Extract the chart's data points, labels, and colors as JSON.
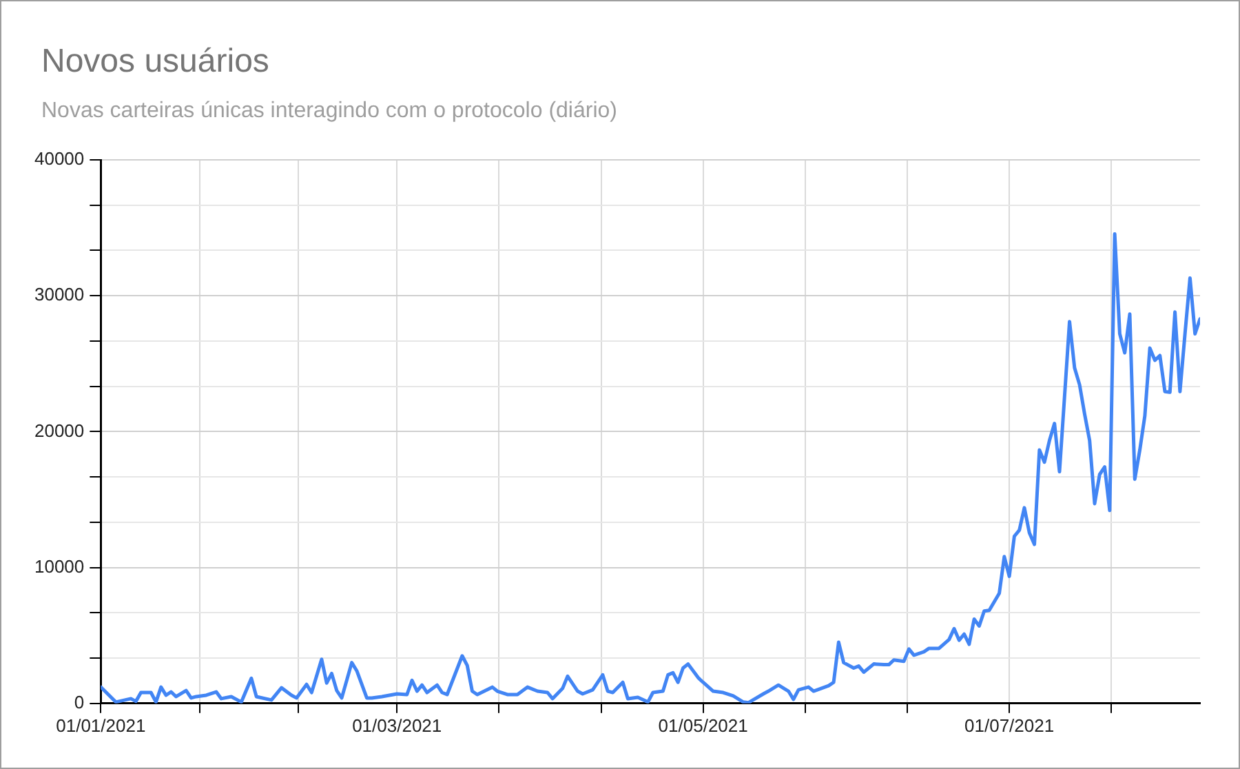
{
  "chart_data": {
    "type": "line",
    "title": "Novos usuários",
    "subtitle": "Novas carteiras únicas interagindo com o protocolo (diário)",
    "x": [
      "2021-01-01",
      "2021-01-04",
      "2021-01-07",
      "2021-01-08",
      "2021-01-09",
      "2021-01-11",
      "2021-01-12",
      "2021-01-13",
      "2021-01-14",
      "2021-01-15",
      "2021-01-16",
      "2021-01-18",
      "2021-01-19",
      "2021-01-20",
      "2021-01-22",
      "2021-01-24",
      "2021-01-25",
      "2021-01-27",
      "2021-01-29",
      "2021-01-31",
      "2021-02-01",
      "2021-02-04",
      "2021-02-06",
      "2021-02-08",
      "2021-02-09",
      "2021-02-11",
      "2021-02-12",
      "2021-02-14",
      "2021-02-15",
      "2021-02-16",
      "2021-02-17",
      "2021-02-18",
      "2021-02-20",
      "2021-02-21",
      "2021-02-23",
      "2021-02-24",
      "2021-02-26",
      "2021-03-01",
      "2021-03-03",
      "2021-03-04",
      "2021-03-05",
      "2021-03-06",
      "2021-03-07",
      "2021-03-09",
      "2021-03-10",
      "2021-03-11",
      "2021-03-14",
      "2021-03-15",
      "2021-03-16",
      "2021-03-17",
      "2021-03-20",
      "2021-03-21",
      "2021-03-23",
      "2021-03-25",
      "2021-03-27",
      "2021-03-29",
      "2021-03-31",
      "2021-04-01",
      "2021-04-03",
      "2021-04-04",
      "2021-04-06",
      "2021-04-07",
      "2021-04-09",
      "2021-04-11",
      "2021-04-12",
      "2021-04-13",
      "2021-04-15",
      "2021-04-16",
      "2021-04-18",
      "2021-04-20",
      "2021-04-21",
      "2021-04-23",
      "2021-04-24",
      "2021-04-25",
      "2021-04-26",
      "2021-04-27",
      "2021-04-28",
      "2021-04-30",
      "2021-05-01",
      "2021-05-03",
      "2021-05-05",
      "2021-05-07",
      "2021-05-09",
      "2021-05-10",
      "2021-05-13",
      "2021-05-14",
      "2021-05-16",
      "2021-05-18",
      "2021-05-19",
      "2021-05-20",
      "2021-05-22",
      "2021-05-23",
      "2021-05-26",
      "2021-05-27",
      "2021-05-28",
      "2021-05-29",
      "2021-05-31",
      "2021-06-01",
      "2021-06-02",
      "2021-06-04",
      "2021-06-06",
      "2021-06-07",
      "2021-06-08",
      "2021-06-10",
      "2021-06-11",
      "2021-06-12",
      "2021-06-14",
      "2021-06-15",
      "2021-06-17",
      "2021-06-19",
      "2021-06-20",
      "2021-06-21",
      "2021-06-22",
      "2021-06-23",
      "2021-06-24",
      "2021-06-25",
      "2021-06-26",
      "2021-06-27",
      "2021-06-29",
      "2021-06-30",
      "2021-07-01",
      "2021-07-02",
      "2021-07-03",
      "2021-07-04",
      "2021-07-05",
      "2021-07-06",
      "2021-07-07",
      "2021-07-08",
      "2021-07-09",
      "2021-07-10",
      "2021-07-11",
      "2021-07-12",
      "2021-07-13",
      "2021-07-14",
      "2021-07-15",
      "2021-07-16",
      "2021-07-17",
      "2021-07-18",
      "2021-07-19",
      "2021-07-20",
      "2021-07-21",
      "2021-07-22",
      "2021-07-23",
      "2021-07-24",
      "2021-07-25",
      "2021-07-26",
      "2021-07-27",
      "2021-07-28",
      "2021-07-29",
      "2021-07-30",
      "2021-07-31",
      "2021-08-01",
      "2021-08-02",
      "2021-08-03",
      "2021-08-04",
      "2021-08-05",
      "2021-08-06",
      "2021-08-07",
      "2021-08-08"
    ],
    "series": [
      {
        "color": "#4285f4",
        "values": [
          1200,
          100,
          350,
          150,
          800,
          800,
          100,
          1200,
          600,
          850,
          500,
          950,
          400,
          500,
          600,
          850,
          350,
          500,
          100,
          1850,
          500,
          250,
          1150,
          600,
          400,
          1400,
          800,
          3250,
          1500,
          2200,
          950,
          400,
          3000,
          2400,
          400,
          400,
          500,
          700,
          650,
          1700,
          900,
          1350,
          800,
          1350,
          800,
          650,
          3500,
          2800,
          900,
          650,
          1200,
          900,
          650,
          650,
          1200,
          900,
          800,
          350,
          1100,
          2000,
          900,
          700,
          1000,
          2100,
          900,
          800,
          1550,
          350,
          450,
          100,
          800,
          900,
          2100,
          2250,
          1550,
          2600,
          2900,
          1900,
          1550,
          900,
          800,
          550,
          100,
          50,
          700,
          900,
          1350,
          900,
          300,
          1000,
          1200,
          900,
          1300,
          1550,
          4500,
          3000,
          2600,
          2750,
          2300,
          2900,
          2850,
          2850,
          3200,
          3100,
          4000,
          3550,
          3800,
          4050,
          4050,
          4700,
          5500,
          4650,
          5100,
          4350,
          6200,
          5700,
          6800,
          6850,
          8100,
          10800,
          9350,
          12300,
          12750,
          14400,
          12550,
          11700,
          18650,
          17750,
          19350,
          20600,
          17050,
          22550,
          28100,
          24700,
          23450,
          21300,
          19350,
          14700,
          16850,
          17400,
          14200,
          34550,
          27200,
          25800,
          28650,
          16500,
          18650,
          21150,
          26150,
          25250,
          25600,
          22950,
          22900,
          28800,
          22950,
          27200,
          31300,
          27200,
          28300
        ]
      }
    ],
    "xlim": [
      "2021-01-01",
      "2021-08-08"
    ],
    "xticks": [
      {
        "value": "2021-01-01",
        "label": "01/01/2021"
      },
      {
        "value": "2021-01-20T16:00",
        "label": null
      },
      {
        "value": "2021-02-09T08:00",
        "label": null
      },
      {
        "value": "2021-03-01",
        "label": "01/03/2021"
      },
      {
        "value": "2021-03-21T08:00",
        "label": null
      },
      {
        "value": "2021-04-10T16:00",
        "label": null
      },
      {
        "value": "2021-05-01",
        "label": "01/05/2021"
      },
      {
        "value": "2021-05-21T08:00",
        "label": null
      },
      {
        "value": "2021-06-10T16:00",
        "label": null
      },
      {
        "value": "2021-07-01",
        "label": "01/07/2021"
      },
      {
        "value": "2021-07-21T08:00",
        "label": null
      }
    ],
    "ylim": [
      0,
      40000
    ],
    "yticks": [
      0,
      {
        "value": 3333.33,
        "label": null
      },
      {
        "value": 6666.67,
        "label": null
      },
      10000,
      {
        "value": 13333.33,
        "label": null
      },
      {
        "value": 16666.67,
        "label": null
      },
      20000,
      {
        "value": 23333.33,
        "label": null
      },
      {
        "value": 26666.67,
        "label": null
      },
      30000,
      {
        "value": 33333.33,
        "label": null
      },
      {
        "value": 36666.67,
        "label": null
      },
      40000
    ],
    "grid": true,
    "legend": false,
    "marker": "none",
    "line_style": "solid"
  }
}
